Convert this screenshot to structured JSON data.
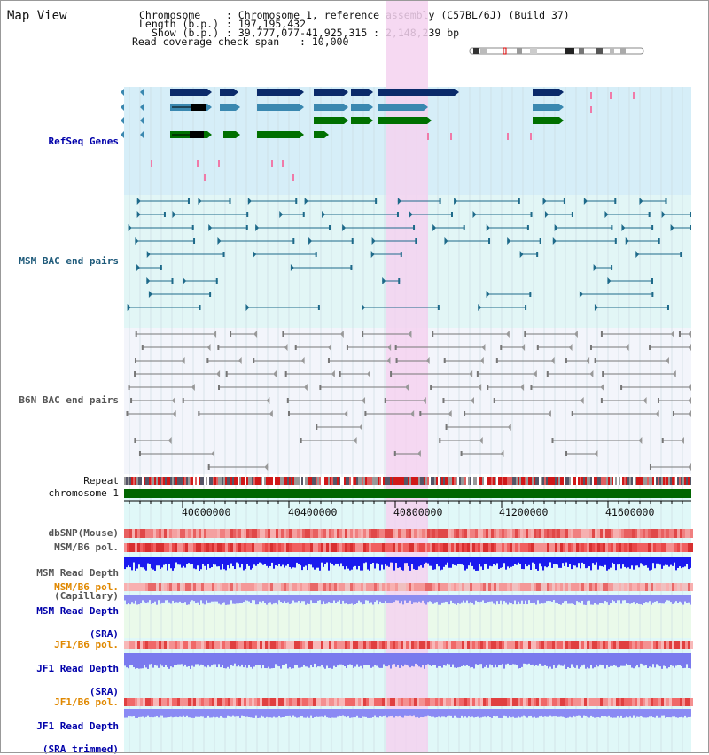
{
  "page": {
    "title": "Map View",
    "chromosome_key": "Chromosome",
    "chromosome_value": ": Chromosome 1, reference assembly (C57BL/6J) (Build 37)",
    "length_key": "Length (b.p.)",
    "length_value": ": 197,195,432",
    "show_key": "Show (b.p.)",
    "show_value": ": 39,777,077-41,925,315 : 2,148,239 bp",
    "coverage_key": "Read coverage check span",
    "coverage_value": ": 10,000"
  },
  "tracks": {
    "refseq": "RefSeq Genes",
    "msm_bac": "MSM BAC end pairs",
    "b6n_bac": "B6N BAC end pairs",
    "repeat": "Repeat",
    "chromosome": "chromosome 1",
    "dbsnp": "dbSNP(Mouse)",
    "msm_b6_pol": "MSM/B6 pol.",
    "msm_read_depth_cap_1": "MSM Read Depth",
    "msm_read_depth_cap_2": "(Capillary)",
    "msm_b6_pol_sra": "MSM/B6 pol.",
    "msm_read_depth_sra_1": "MSM Read Depth",
    "msm_read_depth_sra_2": "(SRA)",
    "jf1_b6_pol": "JF1/B6 pol.",
    "jf1_read_depth_1": "JF1 Read Depth",
    "jf1_read_depth_2": "(SRA)",
    "jf1_b6_pol_2": "JF1/B6 pol.",
    "jf1_read_depth_trim_1": "JF1 Read Depth",
    "jf1_read_depth_trim_2": "(SRA trimmed)"
  },
  "axis": {
    "ticks": [
      "40000000",
      "40400000",
      "40800000",
      "41200000",
      "41600000"
    ]
  },
  "colors": {
    "label_blue": "#0000aa",
    "label_teal": "#1e5a7a",
    "label_gray": "#555555",
    "label_orange": "#e08800",
    "gene_dark": "#0a2a6a",
    "gene_mid": "#3a88b0",
    "gene_green": "#007000",
    "highlight": "#f5d2f0"
  }
}
